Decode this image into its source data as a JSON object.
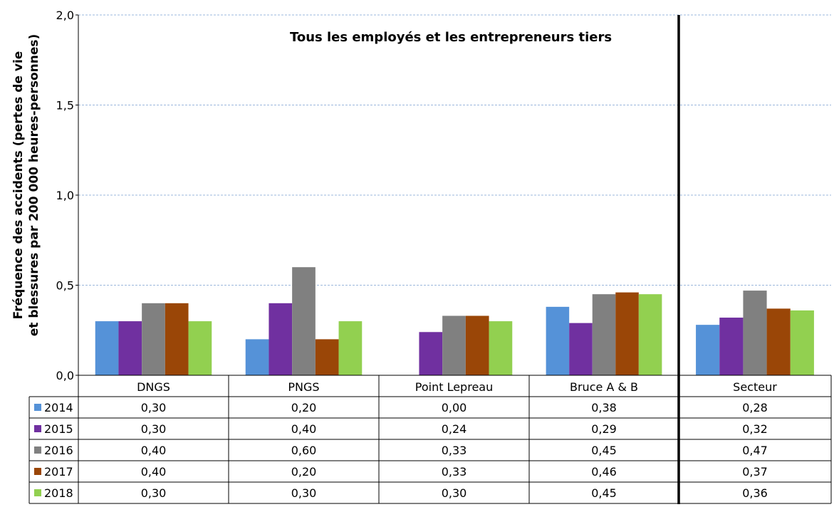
{
  "chart_data": {
    "type": "bar",
    "title": "Tous les employés et les entrepreneurs tiers",
    "ylabel_lines": [
      "Fréquence des accidents (pertes de vie",
      "et blessures par 200 000 heures-personnes)"
    ],
    "ylim": [
      0,
      2.0
    ],
    "y_ticks": [
      "0,0",
      "0,5",
      "1,0",
      "1,5",
      "2,0"
    ],
    "categories": [
      "DNGS",
      "PNGS",
      "Point Lepreau",
      "Bruce A & B",
      "Secteur"
    ],
    "grid": true,
    "legend": "data-table",
    "series": [
      {
        "name": "2014",
        "color": "#5592d8",
        "values": [
          0.3,
          0.2,
          0.0,
          0.38,
          0.28
        ],
        "labels": [
          "0,30",
          "0,20",
          "0,00",
          "0,38",
          "0,28"
        ]
      },
      {
        "name": "2015",
        "color": "#7030a0",
        "values": [
          0.3,
          0.4,
          0.24,
          0.29,
          0.32
        ],
        "labels": [
          "0,30",
          "0,40",
          "0,24",
          "0,29",
          "0,32"
        ]
      },
      {
        "name": "2016",
        "color": "#808080",
        "values": [
          0.4,
          0.6,
          0.33,
          0.45,
          0.47
        ],
        "labels": [
          "0,40",
          "0,60",
          "0,33",
          "0,45",
          "0,47"
        ]
      },
      {
        "name": "2017",
        "color": "#9a4607",
        "values": [
          0.4,
          0.2,
          0.33,
          0.46,
          0.37
        ],
        "labels": [
          "0,40",
          "0,20",
          "0,33",
          "0,46",
          "0,37"
        ]
      },
      {
        "name": "2018",
        "color": "#92d050",
        "values": [
          0.3,
          0.3,
          0.3,
          0.45,
          0.36
        ],
        "labels": [
          "0,30",
          "0,30",
          "0,30",
          "0,45",
          "0,36"
        ]
      }
    ]
  }
}
